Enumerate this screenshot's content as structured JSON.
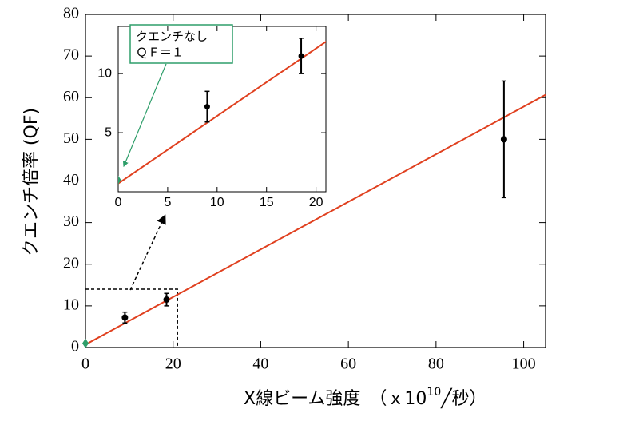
{
  "chart_data": {
    "type": "scatter",
    "ylabel": "クエンチ倍率 (QF)",
    "xlabel": "X線ビーム強度　（ｘ10",
    "xlabel_sup": "10",
    "xlabel_end": "╱秒）",
    "xlim": [
      0,
      105
    ],
    "ylim": [
      0,
      80
    ],
    "xticks": [
      0,
      20,
      40,
      60,
      80,
      100
    ],
    "yticks": [
      0,
      10,
      20,
      30,
      40,
      50,
      60,
      70,
      80
    ],
    "series": [
      {
        "x": [
          9,
          18.5,
          95.5
        ],
        "values": [
          7.2,
          11.5,
          50
        ],
        "errors": [
          1.3,
          1.5,
          14
        ],
        "color": "#000000"
      },
      {
        "x": [
          0
        ],
        "values": [
          1
        ],
        "color": "#2e9e6a",
        "marker": "diamond"
      }
    ],
    "fit": {
      "x": [
        0,
        105
      ],
      "values": [
        0.7,
        60.7
      ],
      "color": "#e0401f"
    },
    "inset": {
      "xlim": [
        0,
        21
      ],
      "ylim": [
        0,
        14
      ],
      "xticks": [
        0,
        5,
        10,
        15,
        20
      ],
      "yticks": [
        5,
        10
      ],
      "annotation": [
        "クエンチなし",
        "ＱＦ＝１"
      ]
    }
  }
}
